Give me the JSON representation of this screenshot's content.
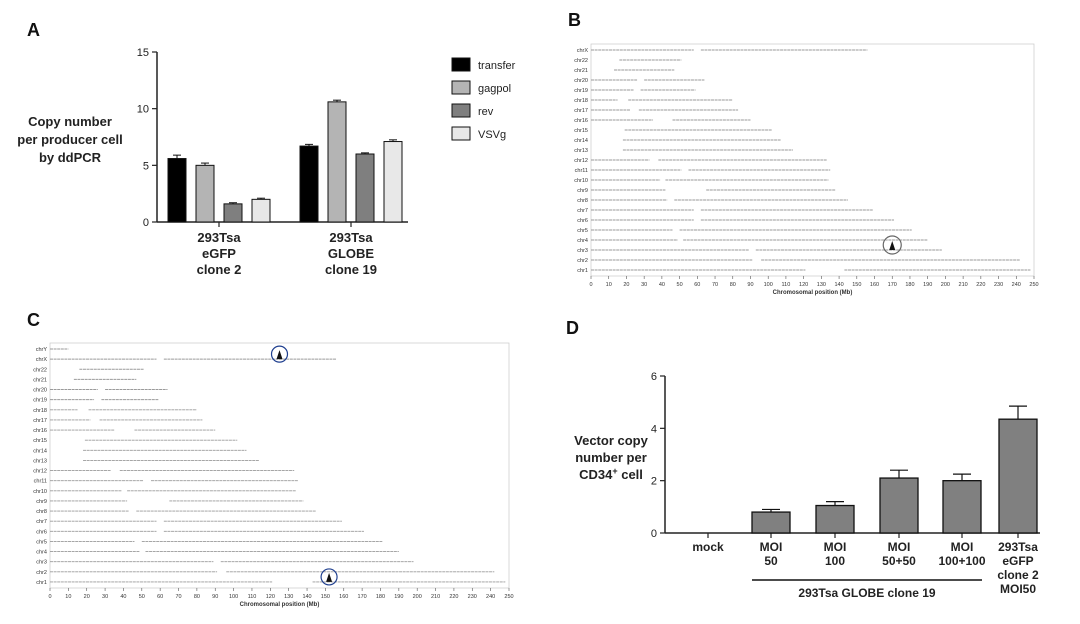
{
  "panels": {
    "A": "A",
    "B": "B",
    "C": "C",
    "D": "D"
  },
  "chart_data": [
    {
      "panel": "A",
      "type": "bar",
      "ylabel_lines": [
        "Copy number",
        "per producer cell",
        "by ddPCR"
      ],
      "ylim": [
        0,
        15
      ],
      "yticks": [
        "0",
        "5",
        "10",
        "15"
      ],
      "groups": [
        {
          "label_lines": [
            "293Tsa",
            "eGFP",
            "clone 2"
          ]
        },
        {
          "label_lines": [
            "293Tsa",
            "GLOBE",
            "clone 19"
          ]
        }
      ],
      "series": [
        {
          "name": "transfer",
          "color": "#000000",
          "values": [
            5.6,
            6.7
          ],
          "errors": [
            0.3,
            0.15
          ]
        },
        {
          "name": "gagpol",
          "color": "#b4b4b4",
          "values": [
            5.0,
            10.6
          ],
          "errors": [
            0.2,
            0.15
          ]
        },
        {
          "name": "rev",
          "color": "#7f7f7f",
          "values": [
            1.6,
            6.0
          ],
          "errors": [
            0.1,
            0.1
          ]
        },
        {
          "name": "VSVg",
          "color": "#e8e8e8",
          "values": [
            2.0,
            7.1
          ],
          "errors": [
            0.1,
            0.15
          ]
        }
      ]
    },
    {
      "panel": "B",
      "type": "scatter",
      "xlabel": "Chromosomal position (Mb)",
      "xlim": [
        0,
        250
      ],
      "xticks": [
        "0",
        "10",
        "20",
        "30",
        "40",
        "50",
        "60",
        "70",
        "80",
        "90",
        "100",
        "110",
        "120",
        "130",
        "140",
        "150",
        "160",
        "170",
        "180",
        "190",
        "200",
        "210",
        "220",
        "230",
        "240",
        "250"
      ],
      "chromosomes": [
        {
          "name": "chr1",
          "length": 248,
          "gap": [
            121,
            143
          ]
        },
        {
          "name": "chr2",
          "length": 242,
          "gap": [
            91,
            96
          ]
        },
        {
          "name": "chr3",
          "length": 198,
          "gap": [
            89,
            93
          ]
        },
        {
          "name": "chr4",
          "length": 190,
          "gap": [
            49,
            52
          ]
        },
        {
          "name": "chr5",
          "length": 181,
          "gap": [
            46,
            50
          ]
        },
        {
          "name": "chr6",
          "length": 171,
          "gap": [
            58,
            62
          ]
        },
        {
          "name": "chr7",
          "length": 159,
          "gap": [
            58,
            62
          ]
        },
        {
          "name": "chr8",
          "length": 145,
          "gap": [
            43,
            47
          ]
        },
        {
          "name": "chr9",
          "length": 138,
          "gap": [
            42,
            65
          ]
        },
        {
          "name": "chr10",
          "length": 134,
          "gap": [
            39,
            42
          ]
        },
        {
          "name": "chr11",
          "length": 135,
          "gap": [
            51,
            55
          ]
        },
        {
          "name": "chr12",
          "length": 133,
          "gap": [
            33,
            38
          ]
        },
        {
          "name": "chr13",
          "length": 114,
          "gap": [
            0,
            18
          ]
        },
        {
          "name": "chr14",
          "length": 107,
          "gap": [
            0,
            18
          ]
        },
        {
          "name": "chr15",
          "length": 102,
          "gap": [
            0,
            19
          ]
        },
        {
          "name": "chr16",
          "length": 90,
          "gap": [
            35,
            46
          ]
        },
        {
          "name": "chr17",
          "length": 83,
          "gap": [
            22,
            27
          ]
        },
        {
          "name": "chr18",
          "length": 80,
          "gap": [
            15,
            21
          ]
        },
        {
          "name": "chr19",
          "length": 59,
          "gap": [
            24,
            28
          ]
        },
        {
          "name": "chr20",
          "length": 64,
          "gap": [
            26,
            30
          ]
        },
        {
          "name": "chr21",
          "length": 47,
          "gap": [
            0,
            13
          ]
        },
        {
          "name": "chr22",
          "length": 51,
          "gap": [
            0,
            16
          ]
        },
        {
          "name": "chrX",
          "length": 156,
          "gap": [
            58,
            62
          ]
        }
      ],
      "peak": {
        "chromosome": "chr3",
        "position_mb": 170
      }
    },
    {
      "panel": "C",
      "type": "scatter",
      "xlabel": "Chromosomal position (Mb)",
      "xlim": [
        0,
        250
      ],
      "xticks": [
        "0",
        "10",
        "20",
        "30",
        "40",
        "50",
        "60",
        "70",
        "80",
        "90",
        "100",
        "110",
        "120",
        "130",
        "140",
        "150",
        "160",
        "170",
        "180",
        "190",
        "200",
        "210",
        "220",
        "230",
        "240",
        "250"
      ],
      "chromosomes": [
        {
          "name": "chr1",
          "length": 248,
          "gap": [
            121,
            143
          ]
        },
        {
          "name": "chr2",
          "length": 242,
          "gap": [
            91,
            96
          ]
        },
        {
          "name": "chr3",
          "length": 198,
          "gap": [
            89,
            93
          ]
        },
        {
          "name": "chr4",
          "length": 190,
          "gap": [
            49,
            52
          ]
        },
        {
          "name": "chr5",
          "length": 181,
          "gap": [
            46,
            50
          ]
        },
        {
          "name": "chr6",
          "length": 171,
          "gap": [
            58,
            62
          ]
        },
        {
          "name": "chr7",
          "length": 159,
          "gap": [
            58,
            62
          ]
        },
        {
          "name": "chr8",
          "length": 145,
          "gap": [
            43,
            47
          ]
        },
        {
          "name": "chr9",
          "length": 138,
          "gap": [
            42,
            65
          ]
        },
        {
          "name": "chr10",
          "length": 134,
          "gap": [
            39,
            42
          ]
        },
        {
          "name": "chr11",
          "length": 135,
          "gap": [
            51,
            55
          ]
        },
        {
          "name": "chr12",
          "length": 133,
          "gap": [
            33,
            38
          ]
        },
        {
          "name": "chr13",
          "length": 114,
          "gap": [
            0,
            18
          ]
        },
        {
          "name": "chr14",
          "length": 107,
          "gap": [
            0,
            18
          ]
        },
        {
          "name": "chr15",
          "length": 102,
          "gap": [
            0,
            19
          ]
        },
        {
          "name": "chr16",
          "length": 90,
          "gap": [
            35,
            46
          ]
        },
        {
          "name": "chr17",
          "length": 83,
          "gap": [
            22,
            27
          ]
        },
        {
          "name": "chr18",
          "length": 80,
          "gap": [
            15,
            21
          ]
        },
        {
          "name": "chr19",
          "length": 59,
          "gap": [
            24,
            28
          ]
        },
        {
          "name": "chr20",
          "length": 64,
          "gap": [
            26,
            30
          ]
        },
        {
          "name": "chr21",
          "length": 47,
          "gap": [
            0,
            13
          ]
        },
        {
          "name": "chr22",
          "length": 51,
          "gap": [
            0,
            16
          ]
        },
        {
          "name": "chrX",
          "length": 156,
          "gap": [
            58,
            62
          ]
        },
        {
          "name": "chrY",
          "length": 57,
          "gap": [
            10,
            57
          ]
        }
      ],
      "peaks": [
        {
          "chromosome": "chrX",
          "position_mb": 125
        },
        {
          "chromosome": "chr1",
          "position_mb": 152
        }
      ]
    },
    {
      "panel": "D",
      "type": "bar",
      "ylabel_line1": "Vector copy",
      "ylabel_line2": "number per",
      "ylabel_line3_main": "CD34",
      "ylabel_line3_sup": "+",
      "ylabel_line3_tail": " cell",
      "ylim": [
        0,
        6
      ],
      "yticks": [
        "0",
        "2",
        "4",
        "6"
      ],
      "categories": [
        {
          "label_lines": [
            "mock"
          ],
          "value": 0,
          "error": 0
        },
        {
          "label_lines": [
            "MOI",
            "50"
          ],
          "value": 0.8,
          "error": 0.1
        },
        {
          "label_lines": [
            "MOI",
            "100"
          ],
          "value": 1.05,
          "error": 0.15
        },
        {
          "label_lines": [
            "MOI",
            "50+50"
          ],
          "value": 2.1,
          "error": 0.3
        },
        {
          "label_lines": [
            "MOI",
            "100+100"
          ],
          "value": 2.0,
          "error": 0.25
        },
        {
          "label_lines": [
            "293Tsa",
            "eGFP",
            "clone 2",
            "MOI50"
          ],
          "value": 4.35,
          "error": 0.5
        }
      ],
      "bar_color": "#808080",
      "group_label": "293Tsa GLOBE clone 19"
    }
  ]
}
